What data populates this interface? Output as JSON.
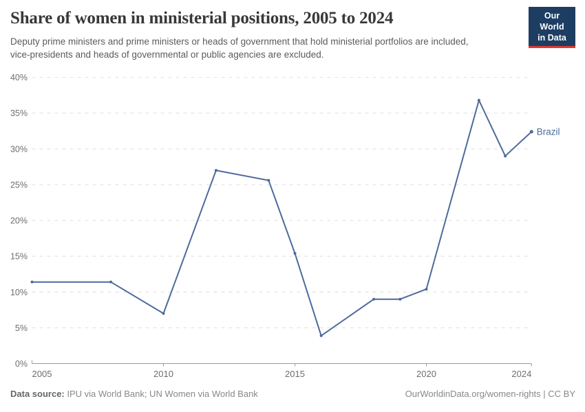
{
  "header": {
    "title": "Share of women in ministerial positions, 2005 to 2024",
    "subtitle": "Deputy prime ministers and prime ministers or heads of government that hold ministerial portfolios are included, vice-presidents and heads of governmental or public agencies are excluded.",
    "logo": {
      "line1": "Our World",
      "line2": "in Data",
      "bg_color": "#1d3d63",
      "accent_color": "#e0392b"
    }
  },
  "chart_data": {
    "type": "line",
    "title": "Share of women in ministerial positions, 2005 to 2024",
    "xlim": [
      2005,
      2024
    ],
    "ylim": [
      0,
      40
    ],
    "grid": "horizontal-dashed",
    "legend_position": "end-of-line-label",
    "x_ticks": [
      {
        "v": 2005,
        "label": "2005"
      },
      {
        "v": 2010,
        "label": "2010"
      },
      {
        "v": 2015,
        "label": "2015"
      },
      {
        "v": 2020,
        "label": "2020"
      },
      {
        "v": 2024,
        "label": "2024"
      }
    ],
    "y_ticks": [
      {
        "v": 0,
        "label": "0%"
      },
      {
        "v": 5,
        "label": "5%"
      },
      {
        "v": 10,
        "label": "10%"
      },
      {
        "v": 15,
        "label": "15%"
      },
      {
        "v": 20,
        "label": "20%"
      },
      {
        "v": 25,
        "label": "25%"
      },
      {
        "v": 30,
        "label": "30%"
      },
      {
        "v": 35,
        "label": "35%"
      },
      {
        "v": 40,
        "label": "40%"
      }
    ],
    "series": [
      {
        "name": "Brazil",
        "color": "#4c6a9c",
        "points": [
          {
            "year": 2005,
            "value": 11.4
          },
          {
            "year": 2008,
            "value": 11.4
          },
          {
            "year": 2010,
            "value": 7.0
          },
          {
            "year": 2012,
            "value": 27.0
          },
          {
            "year": 2014,
            "value": 25.6
          },
          {
            "year": 2015,
            "value": 15.4
          },
          {
            "year": 2016,
            "value": 3.9
          },
          {
            "year": 2018,
            "value": 9.0
          },
          {
            "year": 2019,
            "value": 9.0
          },
          {
            "year": 2020,
            "value": 10.4
          },
          {
            "year": 2022,
            "value": 36.8
          },
          {
            "year": 2023,
            "value": 29.0
          },
          {
            "year": 2024,
            "value": 32.4
          }
        ]
      }
    ],
    "style": {
      "grid_color": "#dedede",
      "axis_color": "#9a9a9a",
      "tick_label_color": "#6e6e6e"
    }
  },
  "footer": {
    "source_label": "Data source:",
    "source_text": " IPU via World Bank; UN Women via World Bank",
    "rights": "OurWorldinData.org/women-rights | CC BY"
  }
}
